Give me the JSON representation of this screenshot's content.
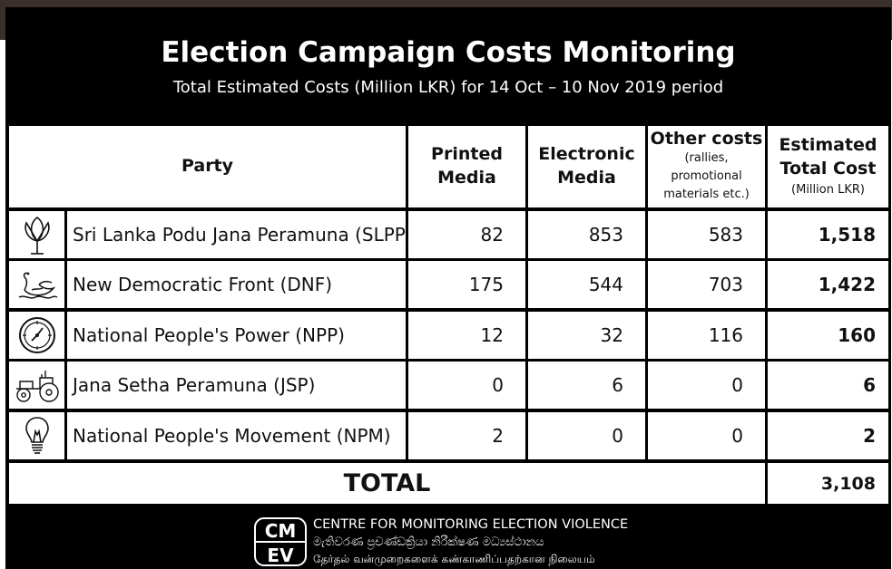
{
  "title": "Election Campaign Costs Monitoring",
  "subtitle": "Total Estimated Costs (Million LKR) for 14 Oct – 10 Nov 2019 period",
  "headers": {
    "party": "Party",
    "printed": [
      "Printed",
      "Media"
    ],
    "electronic": [
      "Electronic",
      "Media"
    ],
    "other": [
      "Other costs"
    ],
    "other_note": [
      "(rallies,",
      "promotional",
      "materials etc.)"
    ],
    "estimated": [
      "Estimated",
      "Total Cost"
    ],
    "estimated_note": "(Million LKR)"
  },
  "rows": [
    {
      "icon": "lotus-icon",
      "party": "Sri Lanka Podu Jana Peramuna (SLPP)",
      "printed": "82",
      "electronic": "853",
      "other": "583",
      "total": "1,518"
    },
    {
      "icon": "swan-icon",
      "party": "New Democratic Front (DNF)",
      "printed": "175",
      "electronic": "544",
      "other": "703",
      "total": "1,422"
    },
    {
      "icon": "compass-icon",
      "party": "National People's Power (NPP)",
      "printed": "12",
      "electronic": "32",
      "other": "116",
      "total": "160"
    },
    {
      "icon": "tractor-icon",
      "party": "Jana Setha Peramuna (JSP)",
      "printed": "0",
      "electronic": "6",
      "other": "0",
      "total": "6"
    },
    {
      "icon": "bulb-icon",
      "party": "National People's Movement (NPM)",
      "printed": "2",
      "electronic": "0",
      "other": "0",
      "total": "2"
    }
  ],
  "total": {
    "label": "TOTAL",
    "value": "3,108"
  },
  "footer": {
    "logo_letters": [
      "CM",
      "EV"
    ],
    "line1": "CENTRE FOR MONITORING ELECTION VIOLENCE",
    "line2": "මැතිවරණ ප්‍රචණ්ඩක්‍රියා නිරීක්ෂණ මධ්‍යස්ථානය",
    "line3": "தேர்தல் வன்முறைகளைக் கண்காணிப்பதற்கான நிலையம்"
  },
  "chart_data": {
    "type": "table",
    "title": "Election Campaign Costs Monitoring",
    "subtitle": "Total Estimated Costs (Million LKR) for 14 Oct – 10 Nov 2019 period",
    "columns": [
      "Party",
      "Printed Media",
      "Electronic Media",
      "Other costs (rallies, promotional materials etc.)",
      "Estimated Total Cost (Million LKR)"
    ],
    "rows": [
      [
        "Sri Lanka Podu Jana Peramuna (SLPP)",
        82,
        853,
        583,
        1518
      ],
      [
        "New Democratic Front (DNF)",
        175,
        544,
        703,
        1422
      ],
      [
        "National People's Power (NPP)",
        12,
        32,
        116,
        160
      ],
      [
        "Jana Setha Peramuna (JSP)",
        0,
        6,
        0,
        6
      ],
      [
        "National People's Movement (NPM)",
        2,
        0,
        0,
        2
      ]
    ],
    "total": 3108
  }
}
